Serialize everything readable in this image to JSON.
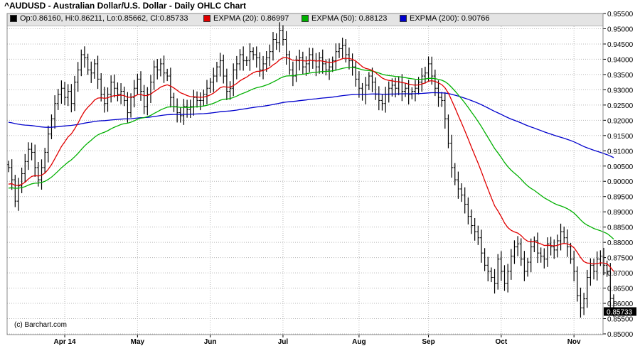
{
  "title": "^AUDUSD - Australian Dollar/U.S. Dollar - Daily OHLC Chart",
  "legend": {
    "ohlc": "Op:0.86160, Hi:0.86211, Lo:0.85662, Cl:0.85733",
    "ema20": "EXPMA (20): 0.86997",
    "ema50": "EXPMA (50): 0.88123",
    "ema200": "EXPMA (200): 0.90766"
  },
  "credit": "(c) Barchart.com",
  "last_price": "0.85733",
  "colors": {
    "ohlc": "#000000",
    "ema20": "#e00000",
    "ema50": "#00b000",
    "ema200": "#0000cc",
    "legend_bg": "#e4e4e4",
    "grid": "#b8b8b8"
  },
  "chart_data": {
    "type": "ohlc",
    "ylim": [
      0.85,
      0.9555
    ],
    "yticks": [
      "0.85000",
      "0.85500",
      "0.86000",
      "0.86500",
      "0.87000",
      "0.87500",
      "0.88000",
      "0.88500",
      "0.89000",
      "0.89500",
      "0.90000",
      "0.90500",
      "0.91000",
      "0.91500",
      "0.92000",
      "0.92500",
      "0.93000",
      "0.93500",
      "0.94000",
      "0.94500",
      "0.95000",
      "0.95500"
    ],
    "xticks": [
      "Apr 14",
      "May",
      "Jun",
      "Jul",
      "Aug",
      "Sep",
      "Oct",
      "Nov"
    ],
    "xtick_index": [
      17,
      39,
      61,
      83,
      106,
      127,
      149,
      171
    ],
    "close": [
      0.9045,
      0.9005,
      0.8935,
      0.8985,
      0.9025,
      0.9065,
      0.9105,
      0.9095,
      0.9045,
      0.9005,
      0.9045,
      0.9095,
      0.9155,
      0.9205,
      0.9255,
      0.9285,
      0.9305,
      0.9275,
      0.9295,
      0.9255,
      0.9325,
      0.9365,
      0.9415,
      0.9405,
      0.9365,
      0.9355,
      0.9385,
      0.9335,
      0.9285,
      0.9255,
      0.9285,
      0.9325,
      0.9305,
      0.9285,
      0.9295,
      0.9265,
      0.9225,
      0.9275,
      0.9305,
      0.9335,
      0.9295,
      0.9245,
      0.9285,
      0.9325,
      0.9375,
      0.9365,
      0.9385,
      0.9355,
      0.9345,
      0.9275,
      0.9245,
      0.9225,
      0.9215,
      0.9245,
      0.9235,
      0.9245,
      0.9275,
      0.9265,
      0.9265,
      0.9285,
      0.9305,
      0.9325,
      0.9345,
      0.9375,
      0.9395,
      0.9345,
      0.9295,
      0.9305,
      0.9365,
      0.9385,
      0.9415,
      0.9395,
      0.9395,
      0.9425,
      0.9415,
      0.9405,
      0.9365,
      0.9385,
      0.9405,
      0.9425,
      0.9465,
      0.9455,
      0.9495,
      0.9465,
      0.9415,
      0.9365,
      0.9345,
      0.9395,
      0.9405,
      0.9375,
      0.9385,
      0.9415,
      0.9395,
      0.9375,
      0.9405,
      0.9385,
      0.9365,
      0.9375,
      0.9395,
      0.9425,
      0.9435,
      0.9445,
      0.9415,
      0.9395,
      0.9375,
      0.9335,
      0.9305,
      0.9285,
      0.9315,
      0.9345,
      0.9325,
      0.9285,
      0.9265,
      0.9255,
      0.9285,
      0.9305,
      0.9315,
      0.9305,
      0.9325,
      0.9295,
      0.9305,
      0.9285,
      0.9295,
      0.9305,
      0.9325,
      0.9345,
      0.9355,
      0.9385,
      0.9345,
      0.9305,
      0.9275,
      0.9265,
      0.9205,
      0.9125,
      0.9045,
      0.9005,
      0.8975,
      0.8955,
      0.8925,
      0.8885,
      0.8855,
      0.8835,
      0.8815,
      0.8765,
      0.8725,
      0.8705,
      0.8685,
      0.8665,
      0.8745,
      0.8705,
      0.8665,
      0.8705,
      0.8755,
      0.8785,
      0.8795,
      0.8745,
      0.8705,
      0.8735,
      0.8785,
      0.8805,
      0.8765,
      0.8755,
      0.8745,
      0.8795,
      0.8785,
      0.8775,
      0.8805,
      0.8835,
      0.8815,
      0.8785,
      0.8745,
      0.8705,
      0.8625,
      0.8585,
      0.8615,
      0.8685,
      0.8725,
      0.8705,
      0.8745,
      0.8755,
      0.8725,
      0.8705,
      0.8616,
      0.8573
    ],
    "ema20_last": 0.86997,
    "ema50_last": 0.88123,
    "ema200_last": 0.90766
  }
}
